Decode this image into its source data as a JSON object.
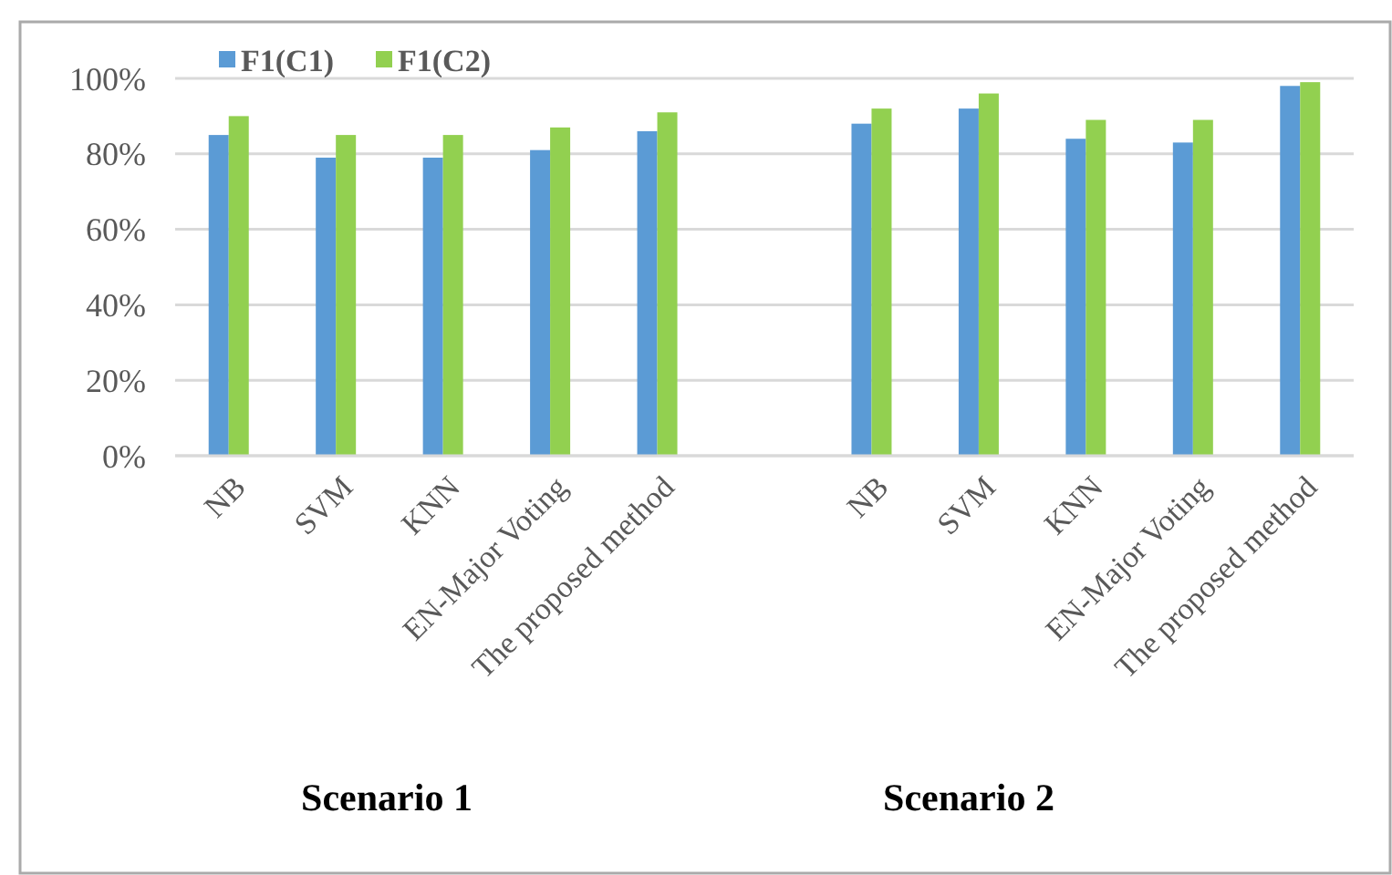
{
  "chart_data": {
    "type": "bar",
    "categories": [
      "NB",
      "SVM",
      "KNN",
      "EN-Major Voting",
      "The proposed method",
      null,
      "NB",
      "SVM",
      "KNN",
      "EN-Major Voting",
      "The proposed method"
    ],
    "series": [
      {
        "name": "F1(C1)",
        "color": "#5b9bd5",
        "values": [
          85,
          79,
          79,
          81,
          86,
          null,
          88,
          92,
          84,
          83,
          98
        ]
      },
      {
        "name": "F1(C2)",
        "color": "#92d050",
        "values": [
          90,
          85,
          85,
          87,
          91,
          null,
          92,
          96,
          89,
          89,
          99
        ]
      }
    ],
    "ylim": [
      0,
      100
    ],
    "yticks": [
      {
        "value": 0,
        "label": "0%"
      },
      {
        "value": 20,
        "label": "20%"
      },
      {
        "value": 40,
        "label": "40%"
      },
      {
        "value": 60,
        "label": "60%"
      },
      {
        "value": 80,
        "label": "80%"
      },
      {
        "value": 100,
        "label": "100%"
      }
    ],
    "grid": "y",
    "legend": "top left",
    "annotations": [
      "Scenario 1",
      "Scenario 2"
    ]
  }
}
